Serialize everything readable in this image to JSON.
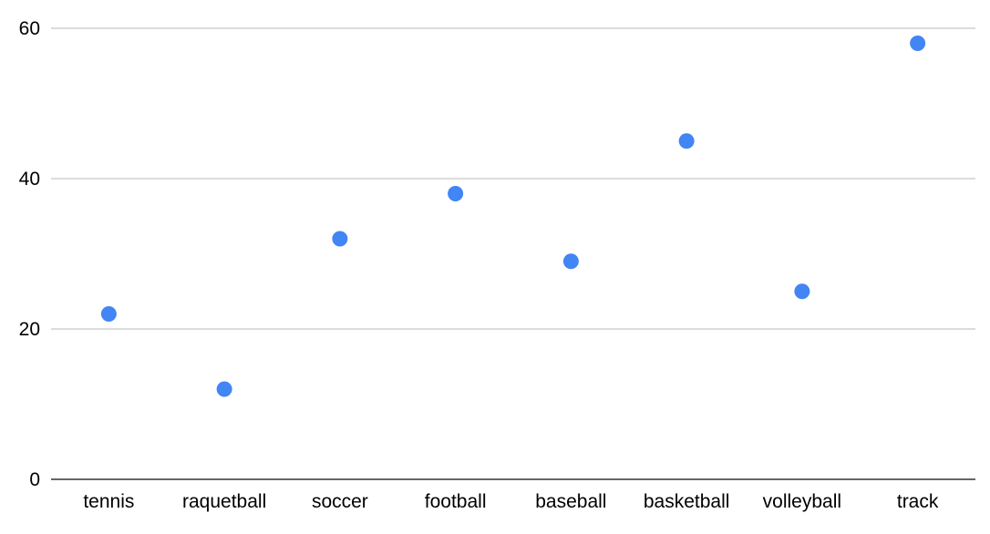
{
  "chart_data": {
    "type": "scatter",
    "title": "",
    "xlabel": "",
    "ylabel": "",
    "categories": [
      "tennis",
      "raquetball",
      "soccer",
      "football",
      "baseball",
      "basketball",
      "volleyball",
      "track"
    ],
    "series": [
      {
        "values": [
          22,
          12,
          32,
          38,
          29,
          45,
          25,
          58
        ],
        "color": "#4285f4"
      }
    ],
    "ylim": [
      0,
      60
    ],
    "yticks": [
      0,
      20,
      40,
      60
    ],
    "grid": true,
    "legend": "none"
  }
}
